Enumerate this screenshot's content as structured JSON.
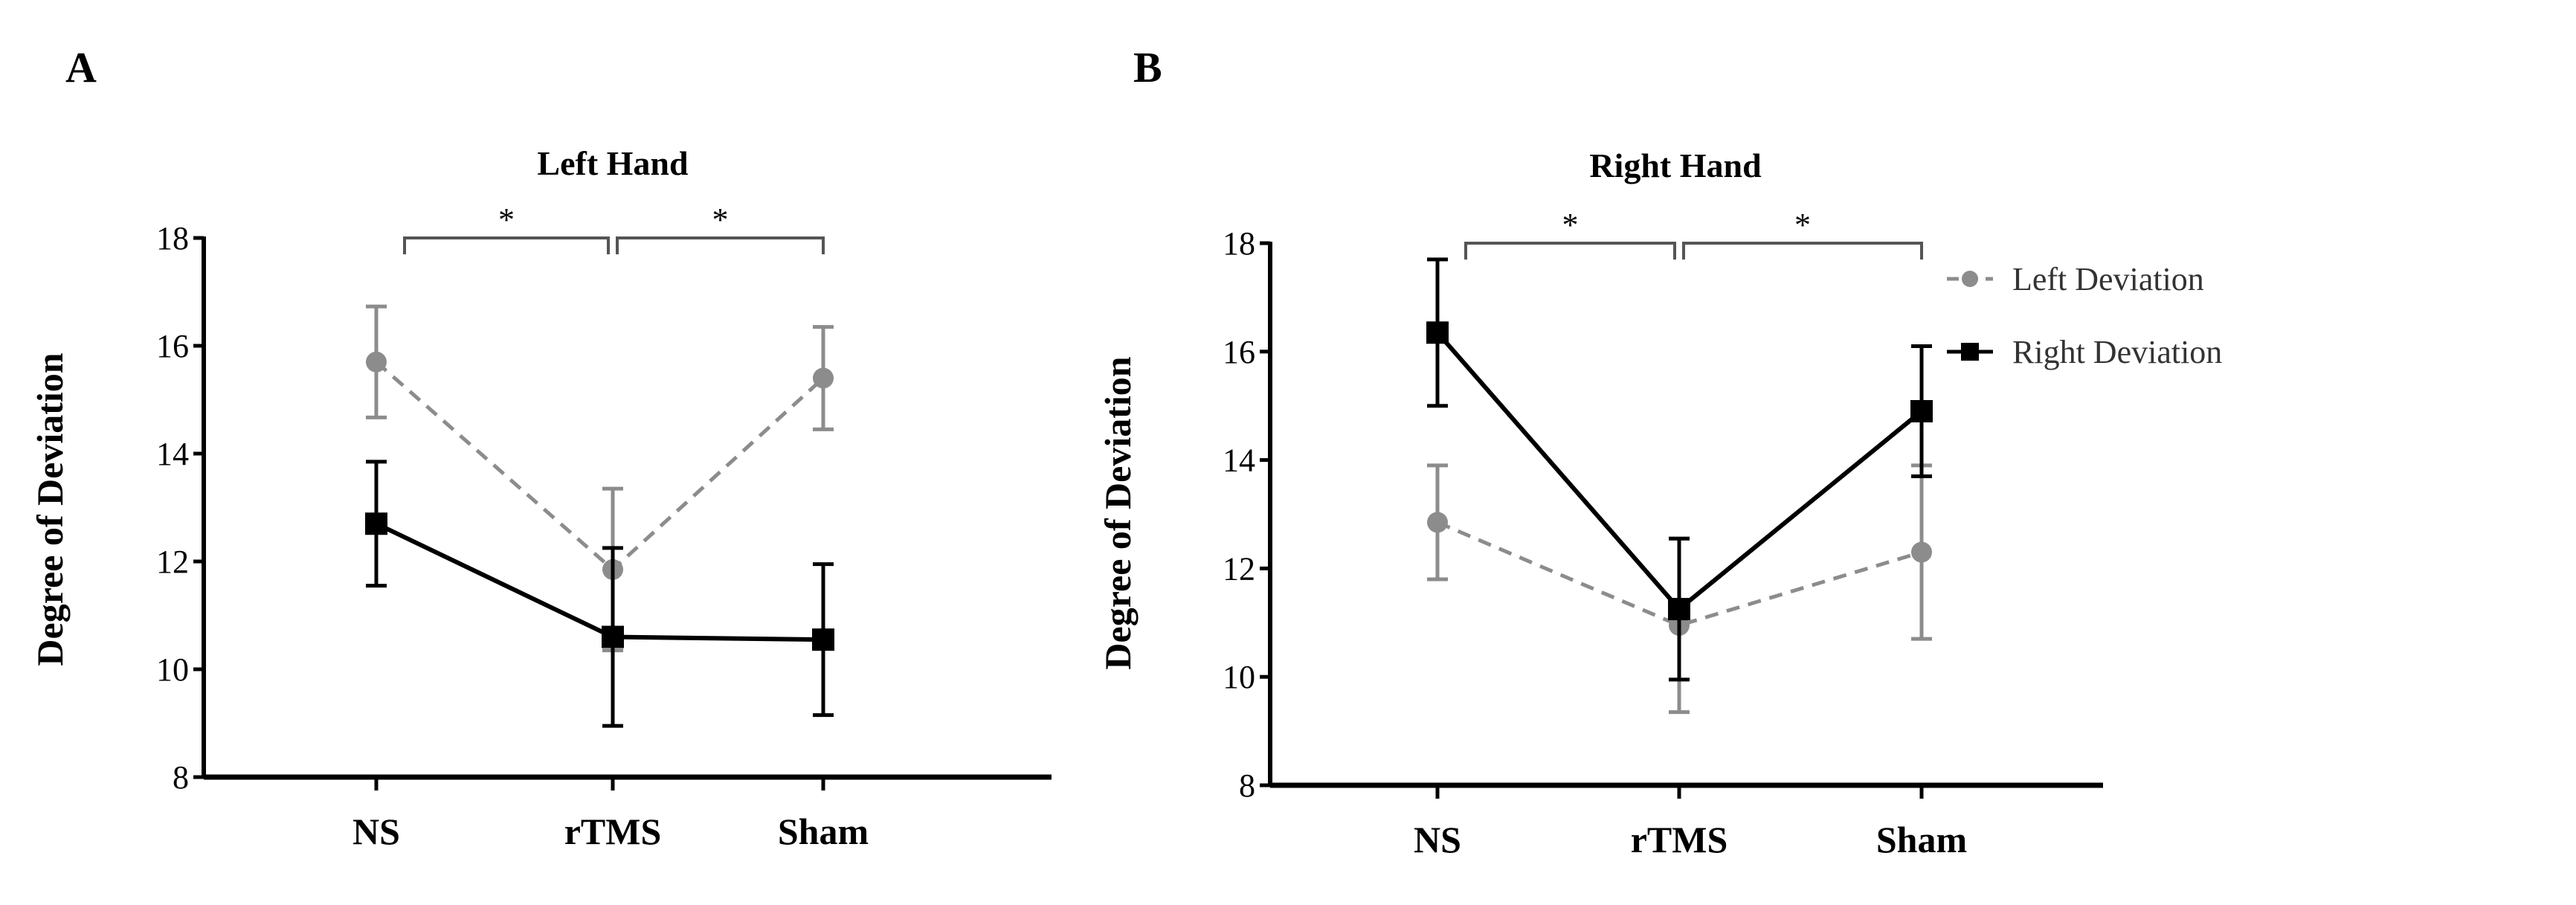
{
  "chart_data": [
    {
      "type": "line",
      "panel_label": "A",
      "title": "Left Hand",
      "ylabel": "Degree of Deviation",
      "xlabel": "",
      "categories": [
        "NS",
        "rTMS",
        "Sham"
      ],
      "ylim": [
        8,
        18
      ],
      "yticks": [
        "8",
        "10",
        "12",
        "14",
        "16",
        "18"
      ],
      "grid": false,
      "series": [
        {
          "name": "Left Deviation",
          "values": [
            15.7,
            11.85,
            15.4
          ],
          "errors": [
            1.03,
            1.5,
            0.95
          ],
          "color": "#8c8c8c",
          "style": "dashed",
          "marker": "circle"
        },
        {
          "name": "Right Deviation",
          "values": [
            12.7,
            10.6,
            10.55
          ],
          "errors": [
            1.15,
            1.65,
            1.4
          ],
          "color": "#000000",
          "style": "solid",
          "marker": "square"
        }
      ],
      "annotations": [
        {
          "from": "NS",
          "to": "rTMS",
          "text": "*"
        },
        {
          "from": "rTMS",
          "to": "Sham",
          "text": "*"
        }
      ]
    },
    {
      "type": "line",
      "panel_label": "B",
      "title": "Right Hand",
      "ylabel": "Degree of Deviation",
      "xlabel": "",
      "categories": [
        "NS",
        "rTMS",
        "Sham"
      ],
      "ylim": [
        8,
        18
      ],
      "yticks": [
        "8",
        "10",
        "12",
        "14",
        "16",
        "18"
      ],
      "grid": false,
      "legend": "right",
      "series": [
        {
          "name": "Left Deviation",
          "values": [
            12.85,
            10.95,
            12.3
          ],
          "errors": [
            1.05,
            1.6,
            1.6
          ],
          "color": "#8c8c8c",
          "style": "dashed",
          "marker": "circle"
        },
        {
          "name": "Right Deviation",
          "values": [
            16.35,
            11.25,
            14.9
          ],
          "errors": [
            1.35,
            1.3,
            1.2
          ],
          "color": "#000000",
          "style": "solid",
          "marker": "square"
        }
      ],
      "annotations": [
        {
          "from": "NS",
          "to": "rTMS",
          "text": "*"
        },
        {
          "from": "rTMS",
          "to": "Sham",
          "text": "*"
        }
      ]
    }
  ],
  "legend": {
    "items": [
      {
        "label": "Left Deviation",
        "color": "#8c8c8c",
        "style": "dashed",
        "marker": "circle"
      },
      {
        "label": "Right Deviation",
        "color": "#000000",
        "style": "solid",
        "marker": "square"
      }
    ]
  }
}
